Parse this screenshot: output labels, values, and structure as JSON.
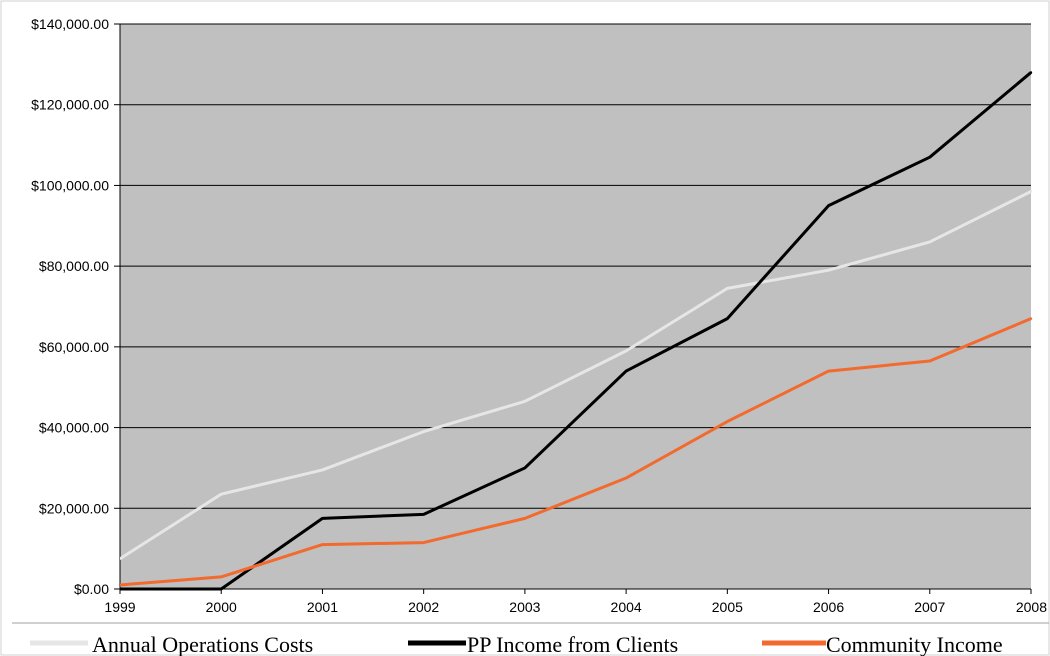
{
  "chart_data": {
    "type": "line",
    "title": "",
    "xlabel": "",
    "ylabel": "",
    "x": [
      "1999",
      "2000",
      "2001",
      "2002",
      "2003",
      "2004",
      "2005",
      "2006",
      "2007",
      "2008"
    ],
    "ylim": [
      0,
      140000
    ],
    "yticks": [
      0,
      20000,
      40000,
      60000,
      80000,
      100000,
      120000,
      140000
    ],
    "ytick_labels": [
      "$0.00",
      "$20,000.00",
      "$40,000.00",
      "$60,000.00",
      "$80,000.00",
      "$100,000.00",
      "$120,000.00",
      "$140,000.00"
    ],
    "grid": true,
    "plot_background": "#c0c0c0",
    "legend_position": "bottom",
    "series": [
      {
        "name": "Annual Operations Costs",
        "color": "#e6e6e6",
        "values": [
          7500,
          23500,
          29500,
          39000,
          46500,
          59000,
          74500,
          79000,
          86000,
          98500
        ]
      },
      {
        "name": "PP Income from Clients",
        "color": "#000000",
        "values": [
          0,
          0,
          17500,
          18500,
          30000,
          54000,
          67000,
          95000,
          107000,
          128000
        ]
      },
      {
        "name": "Community Income",
        "color": "#f26a2e",
        "values": [
          1000,
          3000,
          11000,
          11500,
          17500,
          27500,
          41500,
          54000,
          56500,
          67000
        ]
      }
    ]
  }
}
